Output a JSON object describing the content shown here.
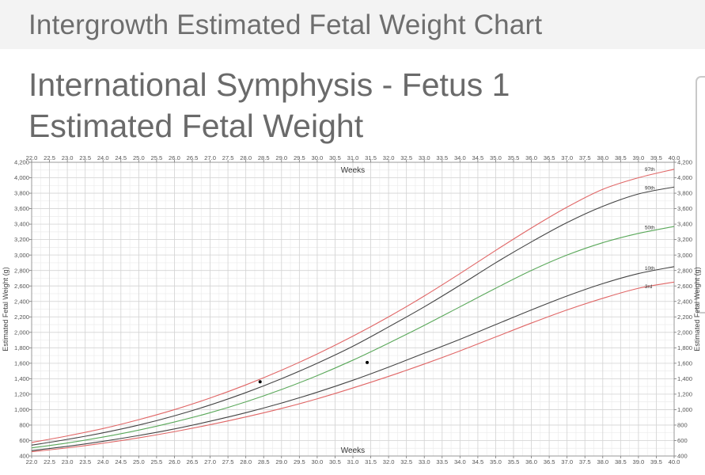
{
  "header": {
    "title": "Intergrowth Estimated Fetal Weight Chart"
  },
  "page": {
    "heading_line1": "International Symphysis - Fetus 1",
    "heading_line2": "Estimated Fetal Weight"
  },
  "chart_data": {
    "type": "line",
    "xlabel": "Weeks",
    "ylabel": "Estimated Fetal Weight (g)",
    "xlim": [
      22.0,
      40.0
    ],
    "ylim": [
      400,
      4200
    ],
    "x_ticks": [
      "22.0",
      "22.5",
      "23.0",
      "23.5",
      "24.0",
      "24.5",
      "25.0",
      "25.5",
      "26.0",
      "26.5",
      "27.0",
      "27.5",
      "28.0",
      "28.5",
      "29.0",
      "29.5",
      "30.0",
      "30.5",
      "31.0",
      "31.5",
      "32.0",
      "32.5",
      "33.0",
      "33.5",
      "34.0",
      "34.5",
      "35.0",
      "35.5",
      "36.0",
      "36.5",
      "37.0",
      "37.5",
      "38.0",
      "38.5",
      "39.0",
      "39.5",
      "40.0"
    ],
    "y_ticks": [
      "400",
      "600",
      "800",
      "1,000",
      "1,200",
      "1,400",
      "1,600",
      "1,800",
      "2,000",
      "2,200",
      "2,400",
      "2,600",
      "2,800",
      "3,000",
      "3,200",
      "3,400",
      "3,600",
      "3,800",
      "4,000",
      "4,200"
    ],
    "grid": true,
    "x": [
      22,
      23,
      24,
      25,
      26,
      27,
      28,
      29,
      30,
      31,
      32,
      33,
      34,
      35,
      36,
      37,
      38,
      39,
      40
    ],
    "series": [
      {
        "name": "97th",
        "color": "#e06666",
        "values": [
          575,
          660,
          755,
          870,
          1000,
          1150,
          1320,
          1510,
          1720,
          1950,
          2200,
          2470,
          2760,
          3060,
          3350,
          3620,
          3850,
          4000,
          4110
        ]
      },
      {
        "name": "90th",
        "color": "#444444",
        "values": [
          540,
          615,
          700,
          800,
          920,
          1060,
          1220,
          1400,
          1600,
          1820,
          2070,
          2330,
          2610,
          2900,
          3170,
          3420,
          3630,
          3790,
          3880
        ]
      },
      {
        "name": "50th",
        "color": "#5aa85a",
        "values": [
          505,
          568,
          645,
          735,
          840,
          960,
          1100,
          1260,
          1440,
          1640,
          1860,
          2090,
          2330,
          2570,
          2800,
          3000,
          3160,
          3280,
          3370
        ]
      },
      {
        "name": "10th",
        "color": "#444444",
        "values": [
          470,
          525,
          590,
          665,
          750,
          850,
          960,
          1085,
          1225,
          1380,
          1550,
          1730,
          1910,
          2100,
          2290,
          2470,
          2630,
          2760,
          2850
        ]
      },
      {
        "name": "3rd",
        "color": "#e06666",
        "values": [
          455,
          505,
          565,
          635,
          715,
          805,
          905,
          1015,
          1140,
          1280,
          1430,
          1590,
          1760,
          1940,
          2120,
          2290,
          2440,
          2570,
          2650
        ]
      }
    ],
    "points": [
      {
        "x": 28.4,
        "y": 1360
      },
      {
        "x": 31.4,
        "y": 1610
      }
    ]
  }
}
